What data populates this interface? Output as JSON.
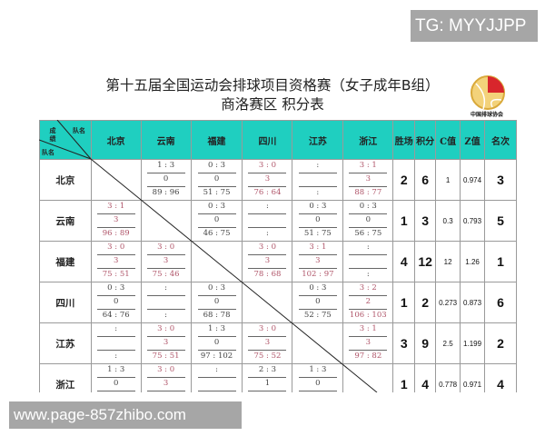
{
  "watermark_top": "TG: MYYJJPP",
  "watermark_bottom": "www.page-857zhibo.com",
  "title_line1": "第十五届全国运动会排球项目资格赛（女子成年B组）",
  "title_line2": "商洛赛区  积分表",
  "logo_text": "中国排球协会",
  "colors": {
    "header_bg": "#1fcfc0",
    "win_text": "#b0566a",
    "loss_text": "#444444"
  },
  "corner": {
    "top": "队名",
    "middle": "成绩",
    "left": "队名"
  },
  "columns": [
    "北京",
    "云南",
    "福建",
    "四川",
    "江苏",
    "浙江"
  ],
  "stat_headers": [
    "胜场",
    "积分",
    "C值",
    "Z值",
    "名次"
  ],
  "rows": [
    {
      "team": "北京",
      "wins": "2",
      "points": "6",
      "c": "1",
      "z": "0.974",
      "rank": "3",
      "matches": [
        null,
        [
          "1 : 3",
          "0",
          "89 : 96"
        ],
        [
          "0 : 3",
          "0",
          "51 : 75"
        ],
        [
          "3 : 0",
          "3",
          "76 : 64"
        ],
        [
          ":",
          "",
          ":"
        ],
        [
          "3 : 1",
          "3",
          "88 : 77"
        ]
      ]
    },
    {
      "team": "云南",
      "wins": "1",
      "points": "3",
      "c": "0.3",
      "z": "0.793",
      "rank": "5",
      "matches": [
        [
          "3 : 1",
          "3",
          "96 : 89"
        ],
        null,
        [
          "0 : 3",
          "0",
          "46 : 75"
        ],
        [
          ":",
          "",
          ":"
        ],
        [
          "0 : 3",
          "0",
          "51 : 75"
        ],
        [
          "0 : 3",
          "0",
          "56 : 75"
        ]
      ]
    },
    {
      "team": "福建",
      "wins": "4",
      "points": "12",
      "c": "12",
      "z": "1.26",
      "rank": "1",
      "matches": [
        [
          "3 : 0",
          "3",
          "75 : 51"
        ],
        [
          "3 : 0",
          "3",
          "75 : 46"
        ],
        null,
        [
          "3 : 0",
          "3",
          "78 : 68"
        ],
        [
          "3 : 1",
          "3",
          "102 : 97"
        ],
        [
          ":",
          "",
          ":"
        ]
      ]
    },
    {
      "team": "四川",
      "wins": "1",
      "points": "2",
      "c": "0.273",
      "z": "0.873",
      "rank": "6",
      "matches": [
        [
          "0 : 3",
          "0",
          "64 : 76"
        ],
        [
          ":",
          "",
          ":"
        ],
        [
          "0 : 3",
          "0",
          "68 : 78"
        ],
        null,
        [
          "0 : 3",
          "0",
          "52 : 75"
        ],
        [
          "3 : 2",
          "2",
          "106 : 103"
        ]
      ]
    },
    {
      "team": "江苏",
      "wins": "3",
      "points": "9",
      "c": "2.5",
      "z": "1.199",
      "rank": "2",
      "matches": [
        [
          ":",
          "",
          ":"
        ],
        [
          "3 : 0",
          "3",
          "75 : 51"
        ],
        [
          "1 : 3",
          "0",
          "97 : 102"
        ],
        [
          "3 : 0",
          "3",
          "75 : 52"
        ],
        null,
        [
          "3 : 1",
          "3",
          "97 : 82"
        ]
      ]
    },
    {
      "team": "浙江",
      "wins": "1",
      "points": "4",
      "c": "0.778",
      "z": "0.971",
      "rank": "4",
      "matches": [
        [
          "1 : 3",
          "0",
          ""
        ],
        [
          "3 : 0",
          "3",
          ""
        ],
        [
          ":",
          "",
          ""
        ],
        [
          "2 : 3",
          "1",
          ""
        ],
        [
          "1 : 3",
          "0",
          ""
        ],
        null
      ]
    }
  ]
}
